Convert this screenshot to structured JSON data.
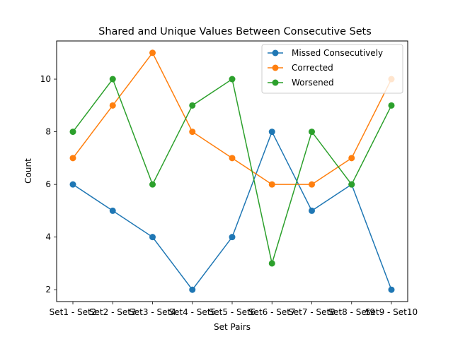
{
  "chart_data": {
    "type": "line",
    "title": "Shared and Unique Values Between Consecutive Sets",
    "xlabel": "Set Pairs",
    "ylabel": "Count",
    "categories": [
      "Set1 - Set2",
      "Set2 - Set3",
      "Set3 - Set4",
      "Set4 - Set5",
      "Set5 - Set6",
      "Set6 - Set7",
      "Set7 - Set8",
      "Set8 - Set9",
      "Set9 - Set10"
    ],
    "yticks": [
      2,
      4,
      6,
      8,
      10
    ],
    "ylim": [
      1.55,
      11.45
    ],
    "grid": false,
    "legend_position": "top-right",
    "series": [
      {
        "name": "Missed Consecutively",
        "color": "#1f77b4",
        "values": [
          6,
          5,
          4,
          2,
          4,
          8,
          5,
          6,
          2
        ]
      },
      {
        "name": "Corrected",
        "color": "#ff7f0e",
        "values": [
          7,
          9,
          11,
          8,
          7,
          6,
          6,
          7,
          10
        ]
      },
      {
        "name": "Worsened",
        "color": "#2ca02c",
        "values": [
          8,
          10,
          6,
          9,
          10,
          3,
          8,
          6,
          9
        ]
      }
    ]
  }
}
